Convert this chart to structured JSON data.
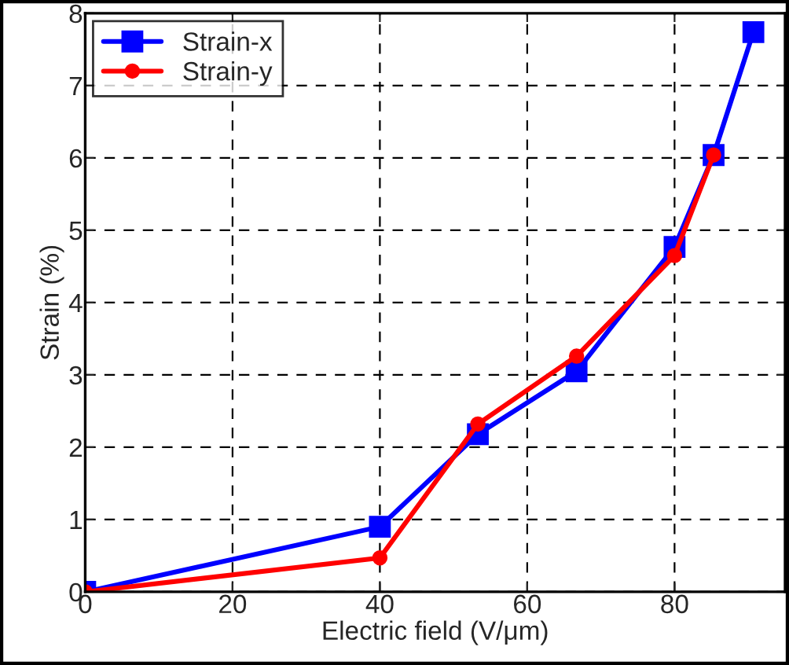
{
  "chart_data": {
    "type": "line",
    "xlabel": "Electric field (V/μm)",
    "ylabel": "Strain (%)",
    "xlim": [
      0,
      95
    ],
    "xticks": [
      0,
      20,
      40,
      60,
      80
    ],
    "ylim": [
      0,
      8
    ],
    "yticks": [
      0,
      1,
      2,
      3,
      4,
      5,
      6,
      7,
      8
    ],
    "grid": true,
    "legend": "top left",
    "series": [
      {
        "name": "Strain-x",
        "color": "#0000ff",
        "marker": "square",
        "x": [
          0,
          40,
          53.3,
          66.7,
          80,
          85.3,
          90.7
        ],
        "values": [
          0,
          0.9,
          2.18,
          3.05,
          4.77,
          6.04,
          7.74
        ]
      },
      {
        "name": "Strain-y",
        "color": "#ff0000",
        "marker": "circle",
        "x": [
          0,
          40,
          53.3,
          66.7,
          80,
          85.3
        ],
        "values": [
          0,
          0.47,
          2.32,
          3.26,
          4.65,
          6.04
        ]
      }
    ]
  }
}
